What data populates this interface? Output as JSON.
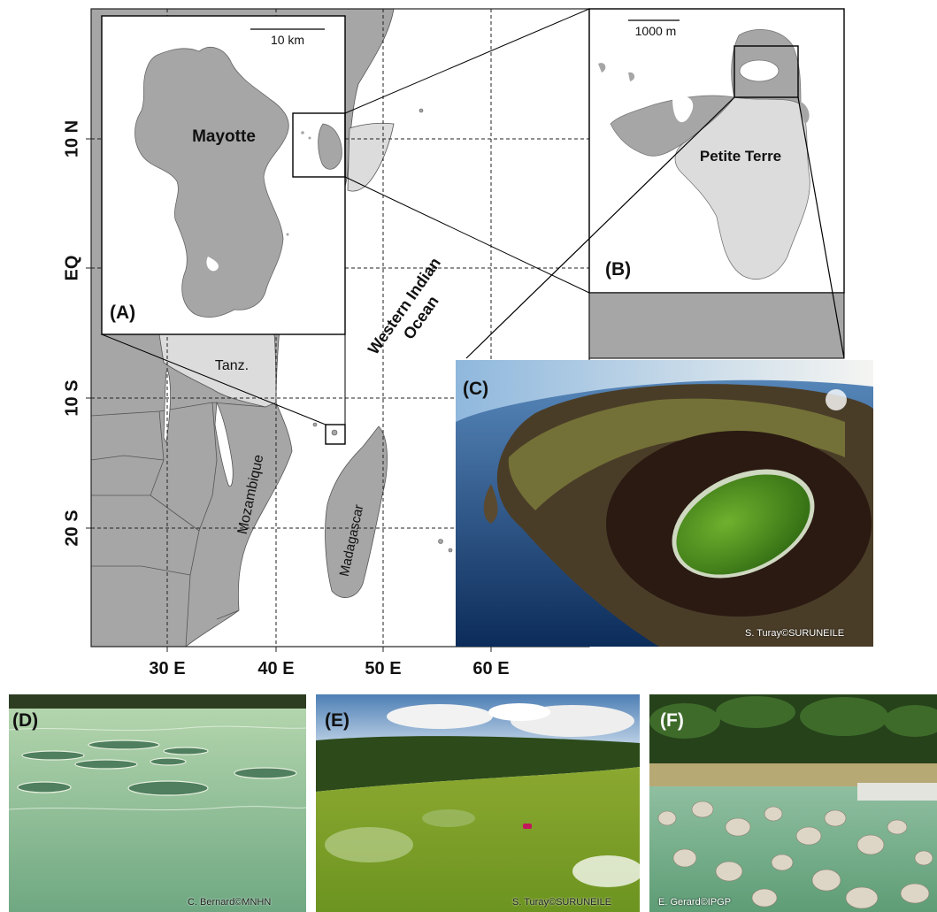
{
  "axes": {
    "y_ticks": [
      "10 N",
      "EQ",
      "10 S",
      "20 S"
    ],
    "x_ticks": [
      "30 E",
      "40 E",
      "50 E",
      "60 E"
    ]
  },
  "map_labels": {
    "ocean": [
      "Western Indian",
      "Ocean"
    ],
    "tanzania": "Tanz.",
    "mozambique": "Mozambique",
    "madagascar": "Madagascar"
  },
  "panel_a": {
    "letter": "(A)",
    "island_name": "Mayotte",
    "scale": "10 km"
  },
  "panel_b": {
    "letter": "(B)",
    "island_name": "Petite Terre",
    "scale": "1000 m"
  },
  "panel_c": {
    "letter": "(C)",
    "credit": "S. Turay©SURUNEILE"
  },
  "panel_d": {
    "letter": "(D)",
    "credit": "C. Bernard©MNHN"
  },
  "panel_e": {
    "letter": "(E)",
    "credit": "S. Turay©SURUNEILE"
  },
  "panel_f": {
    "letter": "(F)",
    "credit": "E. Gerard©IPGP"
  },
  "colors": {
    "land": "#a6a6a6",
    "land_highlight": "#dcdcdc",
    "sea": "#ffffff",
    "lake": "#5f9a1e"
  }
}
